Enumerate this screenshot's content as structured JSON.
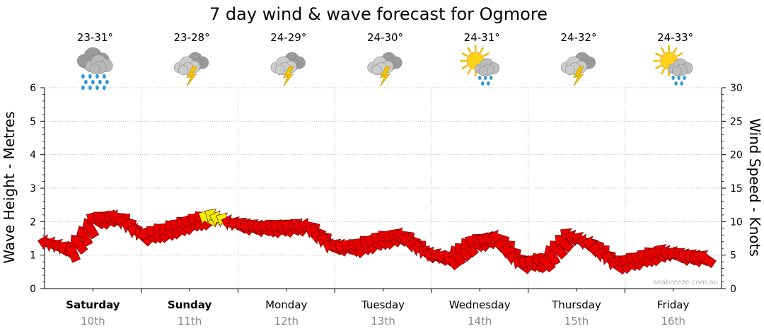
{
  "chart_data": {
    "type": "line",
    "title": "7 day wind & wave forecast for Ogmore",
    "credit": "seabreeze.com.au",
    "ylabel_left": "Wave Height - Metres",
    "ylabel_right": "Wind Speed - Knots",
    "ylim_left": [
      0,
      6
    ],
    "ylim_right": [
      0,
      30
    ],
    "left_ticks": [
      "0",
      "1",
      "2",
      "3",
      "4",
      "5",
      "6"
    ],
    "right_ticks": [
      "0",
      "5",
      "10",
      "15",
      "20",
      "25",
      "30"
    ],
    "grid": true,
    "days": [
      {
        "name": "Saturday",
        "date": "10th",
        "temp": "23-31°",
        "icon": "rain-cloud-icon",
        "bold": true
      },
      {
        "name": "Sunday",
        "date": "11th",
        "temp": "23-28°",
        "icon": "thunderstorm-icon",
        "bold": true
      },
      {
        "name": "Monday",
        "date": "12th",
        "temp": "24-29°",
        "icon": "thunderstorm-icon",
        "bold": false
      },
      {
        "name": "Tuesday",
        "date": "13th",
        "temp": "24-30°",
        "icon": "thunderstorm-icon",
        "bold": false
      },
      {
        "name": "Wednesday",
        "date": "14th",
        "temp": "24-31°",
        "icon": "sun-shower-icon",
        "bold": false
      },
      {
        "name": "Thursday",
        "date": "15th",
        "temp": "24-32°",
        "icon": "thunderstorm-icon",
        "bold": false
      },
      {
        "name": "Friday",
        "date": "16th",
        "temp": "24-33°",
        "icon": "sun-shower-icon",
        "bold": false
      }
    ],
    "series": [
      {
        "unit": "knots",
        "hours": [
          0,
          6,
          12,
          18,
          24,
          30,
          36,
          42,
          48,
          54,
          60,
          66,
          72,
          78,
          84,
          90,
          96,
          102,
          108,
          114,
          120,
          126,
          132,
          138,
          144,
          150,
          156,
          162,
          168
        ],
        "values": [
          6.8,
          5.5,
          10.2,
          10.6,
          7.8,
          8.6,
          9.8,
          10.7,
          9.5,
          9.0,
          9.1,
          9.3,
          6.2,
          6.1,
          7.2,
          7.9,
          5.2,
          4.3,
          6.8,
          7.5,
          3.6,
          4.0,
          7.8,
          6.6,
          3.5,
          4.4,
          5.4,
          4.7,
          4.4
        ],
        "colors": [
          "#e80000",
          "#e80000",
          "#e80000",
          "#e80000",
          "#e80000",
          "#e80000",
          "#e80000",
          "#f0f000",
          "#e80000",
          "#e80000",
          "#e80000",
          "#e80000",
          "#e80000",
          "#e80000",
          "#e80000",
          "#e80000",
          "#e80000",
          "#e80000",
          "#e80000",
          "#e80000",
          "#e80000",
          "#e80000",
          "#e80000",
          "#e80000",
          "#e80000",
          "#e80000",
          "#e80000",
          "#e80000",
          "#e80000"
        ]
      }
    ]
  }
}
